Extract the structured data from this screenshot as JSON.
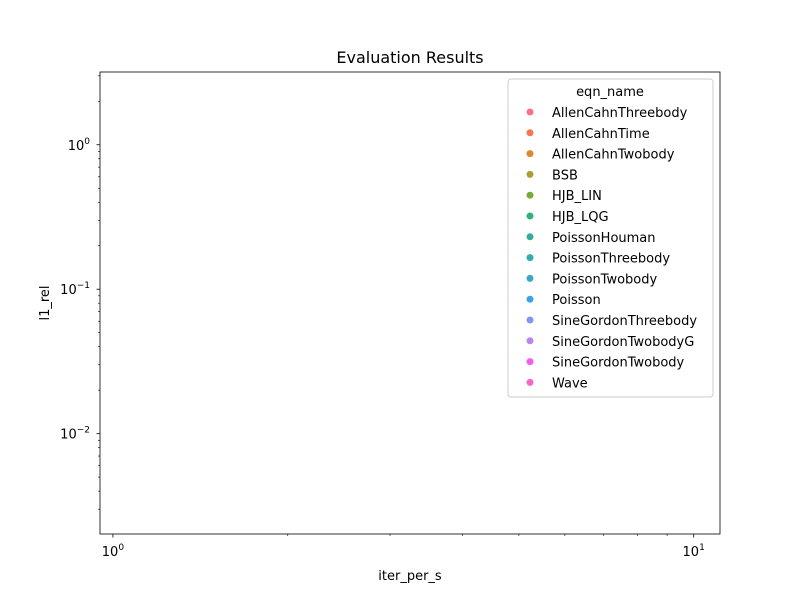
{
  "chart_data": {
    "type": "scatter",
    "title": "Evaluation Results",
    "xlabel": "iter_per_s",
    "ylabel": "l1_rel",
    "xscale": "log",
    "yscale": "log",
    "xlim": [
      0.95,
      11.1
    ],
    "ylim": [
      0.00202,
      3.19
    ],
    "x_ticks": [
      {
        "value": 1,
        "base": "10",
        "exp": "0"
      },
      {
        "value": 10,
        "base": "10",
        "exp": "1"
      }
    ],
    "y_ticks": [
      {
        "value": 1,
        "base": "10",
        "exp": "0"
      },
      {
        "value": 0.1,
        "base": "10",
        "exp": "−1"
      },
      {
        "value": 0.01,
        "base": "10",
        "exp": "−2"
      }
    ],
    "grid": false,
    "legend": {
      "title": "eqn_name",
      "placement": "top-right",
      "entries": [
        {
          "label": "AllenCahnThreebody",
          "color": "#f77189"
        },
        {
          "label": "AllenCahnTime",
          "color": "#f7754f"
        },
        {
          "label": "AllenCahnTwobody",
          "color": "#dc8932"
        },
        {
          "label": "BSB",
          "color": "#ae9d31"
        },
        {
          "label": "HJB_LIN",
          "color": "#77ab31"
        },
        {
          "label": "HJB_LQG",
          "color": "#33b07a"
        },
        {
          "label": "PoissonHouman",
          "color": "#35ad9c"
        },
        {
          "label": "PoissonThreebody",
          "color": "#36abac"
        },
        {
          "label": "PoissonTwobody",
          "color": "#38a9c5"
        },
        {
          "label": "Poisson",
          "color": "#3ba3ec"
        },
        {
          "label": "SineGordonThreebody",
          "color": "#8197f4"
        },
        {
          "label": "SineGordonTwobodyG",
          "color": "#bb83f4"
        },
        {
          "label": "SineGordonTwobody",
          "color": "#f45deb"
        },
        {
          "label": "Wave",
          "color": "#f565cc"
        }
      ]
    },
    "series": []
  }
}
